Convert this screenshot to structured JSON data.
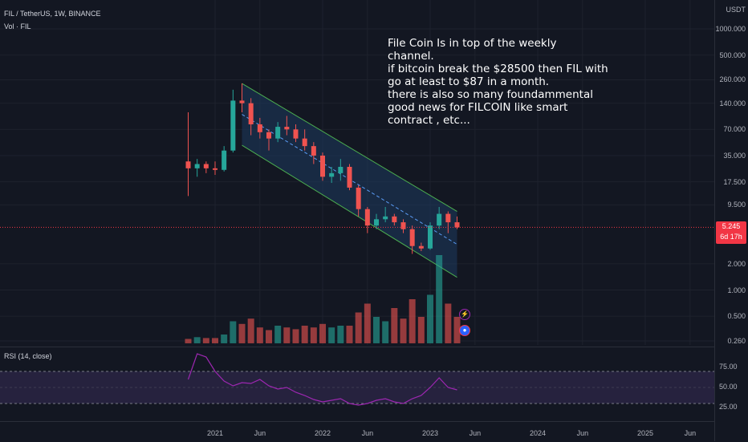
{
  "legend": {
    "symbol_line": "FIL / TetherUS, 1W, BINANCE",
    "volume_line": "Vol · FIL"
  },
  "price_axis": {
    "currency": "USDT",
    "ticks": [
      "1000.000",
      "500.000",
      "260.000",
      "140.000",
      "70.000",
      "35.000",
      "17.500",
      "9.500",
      "2.000",
      "1.000",
      "0.500",
      "0.260"
    ]
  },
  "last_price": {
    "value": "5.245",
    "countdown": "6d 17h",
    "color": "#f23645"
  },
  "annotation": {
    "lines": [
      "File Coin Is in top of the weekly",
      "channel.",
      "if bitcoin break the $28500 then FIL with",
      "go at least to $87 in a month.",
      "there is also so many foundammental",
      "good news for FILCOIN like smart",
      "contract , etc..."
    ]
  },
  "rsi": {
    "label": "RSI (14, close)",
    "ticks": [
      "75.00",
      "50.00",
      "25.00"
    ],
    "color": "#9c27b0"
  },
  "time_axis": {
    "ticks": [
      "2021",
      "Jun",
      "2022",
      "Jun",
      "2023",
      "Jun",
      "2024",
      "Jun",
      "2025",
      "Jun"
    ]
  },
  "colors": {
    "up": "#26a69a",
    "down": "#ef5350",
    "channel": "#4caf50",
    "channel_fill": "#1e3a5f",
    "background": "#131722"
  },
  "icons": [
    "lightning-icon",
    "flag-icon"
  ],
  "chart_data": {
    "type": "candlestick",
    "symbol": "FIL / TetherUS",
    "interval": "1W",
    "y_scale": "log",
    "ylim": [
      0.26,
      1000
    ],
    "last_close": 5.245,
    "price_series": [
      {
        "t": "2020-10",
        "o": 30,
        "h": 110,
        "l": 12,
        "c": 25
      },
      {
        "t": "2020-11",
        "o": 25,
        "h": 32,
        "l": 20,
        "c": 28
      },
      {
        "t": "2020-12",
        "o": 28,
        "h": 30,
        "l": 22,
        "c": 25
      },
      {
        "t": "2021-01",
        "o": 25,
        "h": 30,
        "l": 21,
        "c": 24
      },
      {
        "t": "2021-02",
        "o": 24,
        "h": 45,
        "l": 23,
        "c": 40
      },
      {
        "t": "2021-03",
        "o": 40,
        "h": 200,
        "l": 38,
        "c": 150
      },
      {
        "t": "2021-04",
        "o": 150,
        "h": 236,
        "l": 110,
        "c": 140
      },
      {
        "t": "2021-05",
        "o": 140,
        "h": 160,
        "l": 60,
        "c": 80
      },
      {
        "t": "2021-06",
        "o": 80,
        "h": 95,
        "l": 55,
        "c": 65
      },
      {
        "t": "2021-07",
        "o": 65,
        "h": 70,
        "l": 40,
        "c": 55
      },
      {
        "t": "2021-08",
        "o": 55,
        "h": 85,
        "l": 50,
        "c": 75
      },
      {
        "t": "2021-09",
        "o": 75,
        "h": 100,
        "l": 60,
        "c": 70
      },
      {
        "t": "2021-10",
        "o": 70,
        "h": 80,
        "l": 50,
        "c": 55
      },
      {
        "t": "2021-11",
        "o": 55,
        "h": 70,
        "l": 40,
        "c": 45
      },
      {
        "t": "2021-12",
        "o": 45,
        "h": 50,
        "l": 28,
        "c": 35
      },
      {
        "t": "2022-01",
        "o": 35,
        "h": 38,
        "l": 18,
        "c": 20
      },
      {
        "t": "2022-02",
        "o": 20,
        "h": 26,
        "l": 17,
        "c": 22
      },
      {
        "t": "2022-03",
        "o": 22,
        "h": 32,
        "l": 18,
        "c": 26
      },
      {
        "t": "2022-04",
        "o": 26,
        "h": 28,
        "l": 14,
        "c": 15
      },
      {
        "t": "2022-05",
        "o": 15,
        "h": 16,
        "l": 7,
        "c": 8.5
      },
      {
        "t": "2022-06",
        "o": 8.5,
        "h": 9,
        "l": 4.5,
        "c": 5.5
      },
      {
        "t": "2022-07",
        "o": 5.5,
        "h": 7.5,
        "l": 5,
        "c": 6.5
      },
      {
        "t": "2022-08",
        "o": 6.5,
        "h": 9,
        "l": 6,
        "c": 7
      },
      {
        "t": "2022-09",
        "o": 7,
        "h": 7.5,
        "l": 5.5,
        "c": 6
      },
      {
        "t": "2022-10",
        "o": 6,
        "h": 6.5,
        "l": 4.5,
        "c": 5
      },
      {
        "t": "2022-11",
        "o": 5,
        "h": 5.5,
        "l": 2.6,
        "c": 3.2
      },
      {
        "t": "2022-12",
        "o": 3.2,
        "h": 3.5,
        "l": 2.8,
        "c": 3
      },
      {
        "t": "2023-01",
        "o": 3,
        "h": 6,
        "l": 2.9,
        "c": 5.5
      },
      {
        "t": "2023-02",
        "o": 5.5,
        "h": 9,
        "l": 5,
        "c": 7.5
      },
      {
        "t": "2023-03",
        "o": 7.5,
        "h": 8,
        "l": 4.5,
        "c": 6
      },
      {
        "t": "2023-04",
        "o": 6,
        "h": 7,
        "l": 5,
        "c": 5.245
      }
    ],
    "volume_scale_max": 1,
    "volume_series": [
      0.05,
      0.07,
      0.06,
      0.06,
      0.1,
      0.25,
      0.22,
      0.28,
      0.18,
      0.15,
      0.2,
      0.18,
      0.16,
      0.2,
      0.18,
      0.22,
      0.18,
      0.2,
      0.2,
      0.35,
      0.45,
      0.3,
      0.25,
      0.4,
      0.28,
      0.5,
      0.3,
      0.55,
      1.0,
      0.45,
      0.3
    ],
    "rsi_series": [
      60,
      92,
      88,
      70,
      58,
      52,
      56,
      55,
      60,
      52,
      48,
      50,
      44,
      40,
      35,
      32,
      34,
      36,
      30,
      28,
      30,
      34,
      36,
      32,
      30,
      36,
      40,
      50,
      62,
      50,
      47
    ],
    "channel": {
      "upper": [
        [
          "2021-04",
          236
        ],
        [
          "2023-04",
          8.0
        ]
      ],
      "lower": [
        [
          "2021-04",
          46
        ],
        [
          "2023-04",
          1.4
        ]
      ]
    }
  }
}
